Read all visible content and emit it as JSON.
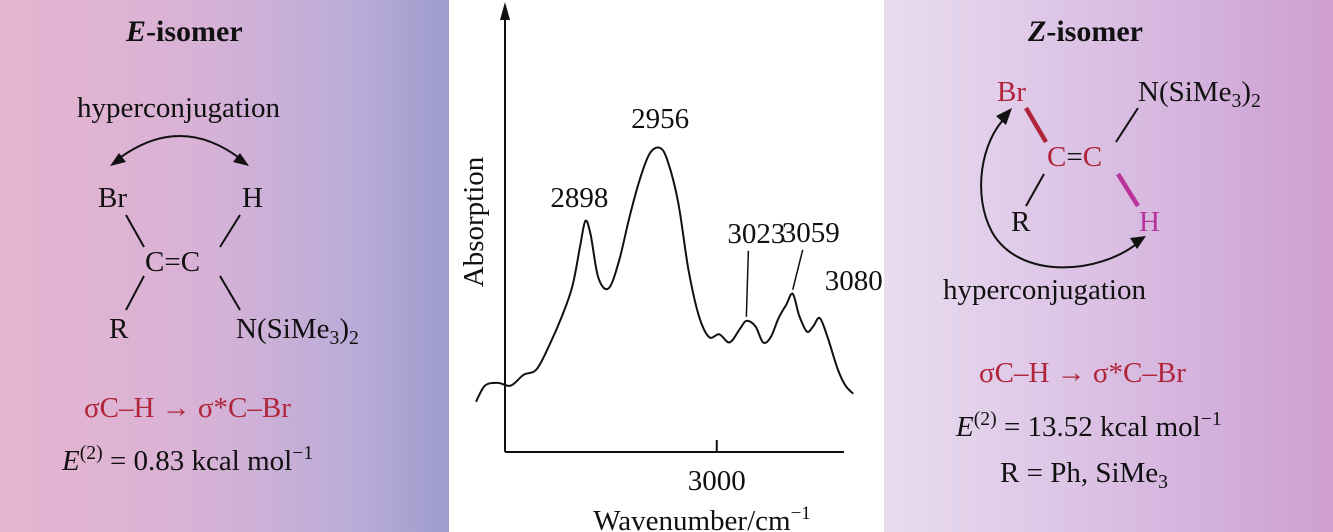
{
  "e_isomer": {
    "title_letter": "E",
    "title_rest": "-isomer",
    "hyperconjugation": "hyperconjugation",
    "atom_br": "Br",
    "atom_h": "H",
    "atom_c1": "C",
    "double_bond": "=",
    "atom_c2": "C",
    "atom_r": "R",
    "n_prefix": "N(SiMe",
    "n_sub3": "3",
    "n_close": ")",
    "n_sub2": "2",
    "interaction_sigma": "σC–H",
    "interaction_arrow": "→",
    "interaction_sigma_star": "σ*C–Br",
    "energy_symbol": "E",
    "energy_sup": "(2)",
    "energy_text": " = 0.83 kcal mol",
    "energy_unit_sup": "−1"
  },
  "z_isomer": {
    "title_letter": "Z",
    "title_rest": "-isomer",
    "hyperconjugation": "hyperconjugation",
    "atom_br": "Br",
    "atom_c1": "C",
    "double_bond": "=",
    "atom_c2": "C",
    "atom_r": "R",
    "atom_h": "H",
    "n_prefix": "N(SiMe",
    "n_sub3": "3",
    "n_close": ")",
    "n_sub2": "2",
    "interaction_sigma": "σC–H",
    "interaction_arrow": "→",
    "interaction_sigma_star": "σ*C–Br",
    "energy_symbol": "E",
    "energy_sup": "(2)",
    "energy_text": " = 13.52 kcal mol",
    "energy_unit_sup": "−1",
    "r_definition_prefix": "R = Ph, SiMe",
    "r_definition_sub": "3"
  },
  "colors": {
    "bromine_bond": "#b0253a",
    "hydrogen_bond": "#b8349b",
    "left_panel_start": "#e6b5d0",
    "left_panel_end": "#9d9ccd",
    "right_panel_start": "#e9dcef",
    "right_panel_end": "#cf9fcf"
  },
  "chart_data": {
    "type": "line",
    "xlabel": "Wavenumber/cm",
    "xlabel_sup": "−1",
    "ylabel": "Absorption",
    "x_ticks": [
      3000
    ],
    "x_tick_labels": [
      "3000"
    ],
    "xlim": [
      2820,
      3140
    ],
    "ylim": [
      0,
      1
    ],
    "grid": false,
    "series": [
      {
        "x": [
          2813,
          2820,
          2830,
          2840,
          2850,
          2860,
          2870,
          2880,
          2888,
          2894,
          2898,
          2902,
          2908,
          2916,
          2924,
          2932,
          2940,
          2948,
          2956,
          2962,
          2970,
          2978,
          2986,
          2994,
          3002,
          3010,
          3018,
          3023,
          3030,
          3036,
          3042,
          3048,
          3054,
          3059,
          3064,
          3070,
          3075,
          3080,
          3086,
          3094,
          3100,
          3106
        ],
        "y": [
          0.06,
          0.12,
          0.13,
          0.12,
          0.16,
          0.18,
          0.27,
          0.38,
          0.49,
          0.64,
          0.73,
          0.68,
          0.52,
          0.48,
          0.58,
          0.74,
          0.88,
          0.98,
          1.0,
          0.95,
          0.8,
          0.55,
          0.38,
          0.3,
          0.31,
          0.28,
          0.33,
          0.36,
          0.34,
          0.28,
          0.3,
          0.37,
          0.42,
          0.46,
          0.38,
          0.32,
          0.34,
          0.37,
          0.3,
          0.18,
          0.12,
          0.09
        ]
      }
    ],
    "annotations": [
      {
        "label": "2898",
        "x": 2898,
        "leader": false
      },
      {
        "label": "2956",
        "x": 2956,
        "leader": false
      },
      {
        "label": "3023",
        "x": 3023,
        "leader": true
      },
      {
        "label": "3059",
        "x": 3059,
        "leader": true
      },
      {
        "label": "3080",
        "x": 3080,
        "leader": false
      }
    ]
  }
}
